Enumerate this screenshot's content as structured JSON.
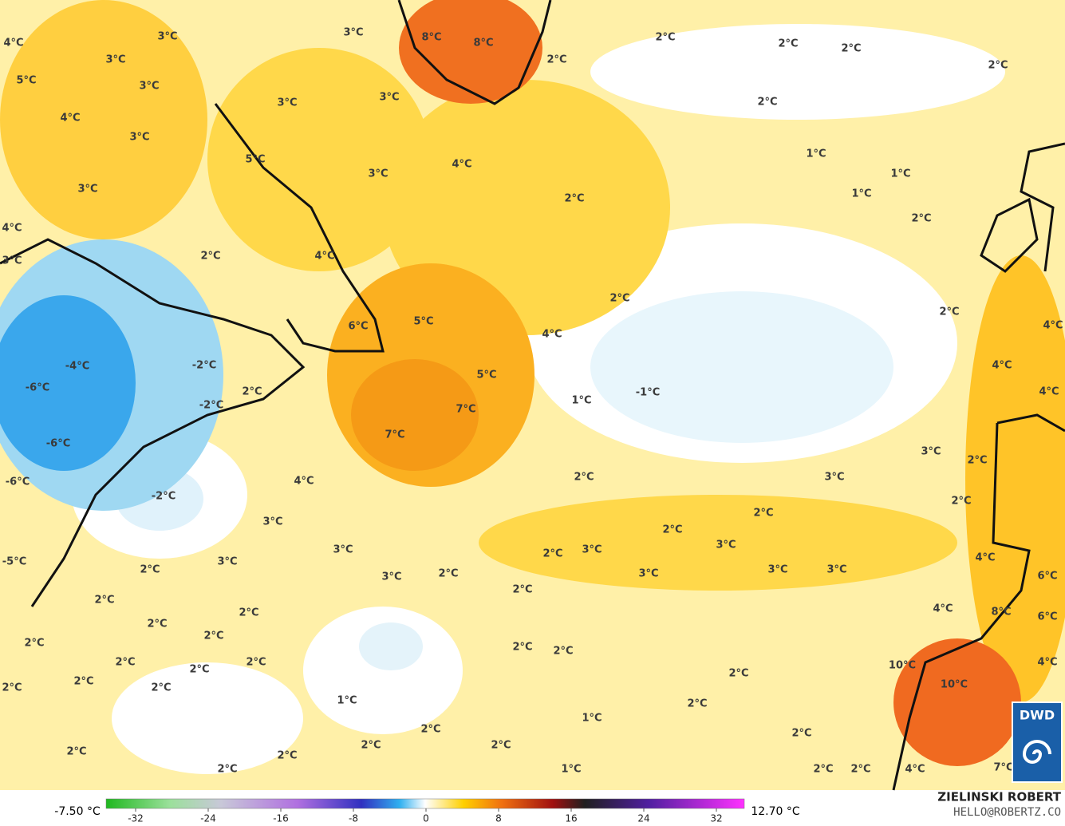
{
  "map": {
    "labels": [
      "3°C",
      "3°C",
      "4°C",
      "3°C",
      "5°C",
      "3°C",
      "4°C",
      "3°C",
      "3°C",
      "3°C",
      "8°C",
      "8°C",
      "2°C",
      "2°C",
      "2°C",
      "2°C",
      "2°C",
      "2°C",
      "1°C",
      "1°C",
      "1°C",
      "2°C",
      "5°C",
      "3°C",
      "4°C",
      "2°C",
      "3°C",
      "4°C",
      "3°C",
      "2°C",
      "4°C",
      "2°C",
      "2°C",
      "4°C",
      "6°C",
      "5°C",
      "4°C",
      "-4°C",
      "-2°C",
      "-6°C",
      "4°C",
      "5°C",
      "-1°C",
      "2°C",
      "1°C",
      "4°C",
      "-2°C",
      "7°C",
      "7°C",
      "-6°C",
      "3°C",
      "2°C",
      "-6°C",
      "4°C",
      "2°C",
      "3°C",
      "-2°C",
      "2°C",
      "2°C",
      "3°C",
      "2°C",
      "3°C",
      "3°C",
      "2°C",
      "3°C",
      "-5°C",
      "3°C",
      "2°C",
      "4°C",
      "3°C",
      "2°C",
      "3°C",
      "3°C",
      "3°C",
      "6°C",
      "2°C",
      "2°C",
      "2°C",
      "2°C",
      "4°C",
      "8°C",
      "6°C",
      "2°C",
      "2°C",
      "2°C",
      "2°C",
      "2°C",
      "2°C",
      "2°C",
      "10°C",
      "4°C",
      "2°C",
      "2°C",
      "2°C",
      "2°C",
      "10°C",
      "1°C",
      "2°C",
      "1°C",
      "2°C",
      "2°C",
      "2°C",
      "2°C",
      "2°C",
      "2°C",
      "2°C",
      "1°C",
      "2°C",
      "2°C",
      "4°C",
      "7°C"
    ]
  },
  "legend": {
    "min": "-7.50 °C",
    "max": "12.70 °C",
    "ticks": [
      -32,
      -24,
      -16,
      -8,
      0,
      8,
      16,
      24,
      32
    ]
  },
  "credits": {
    "author": "ZIELINSKI ROBERT",
    "contact": "HELLO@ROBERTZ.CO",
    "logo": "DWD"
  }
}
